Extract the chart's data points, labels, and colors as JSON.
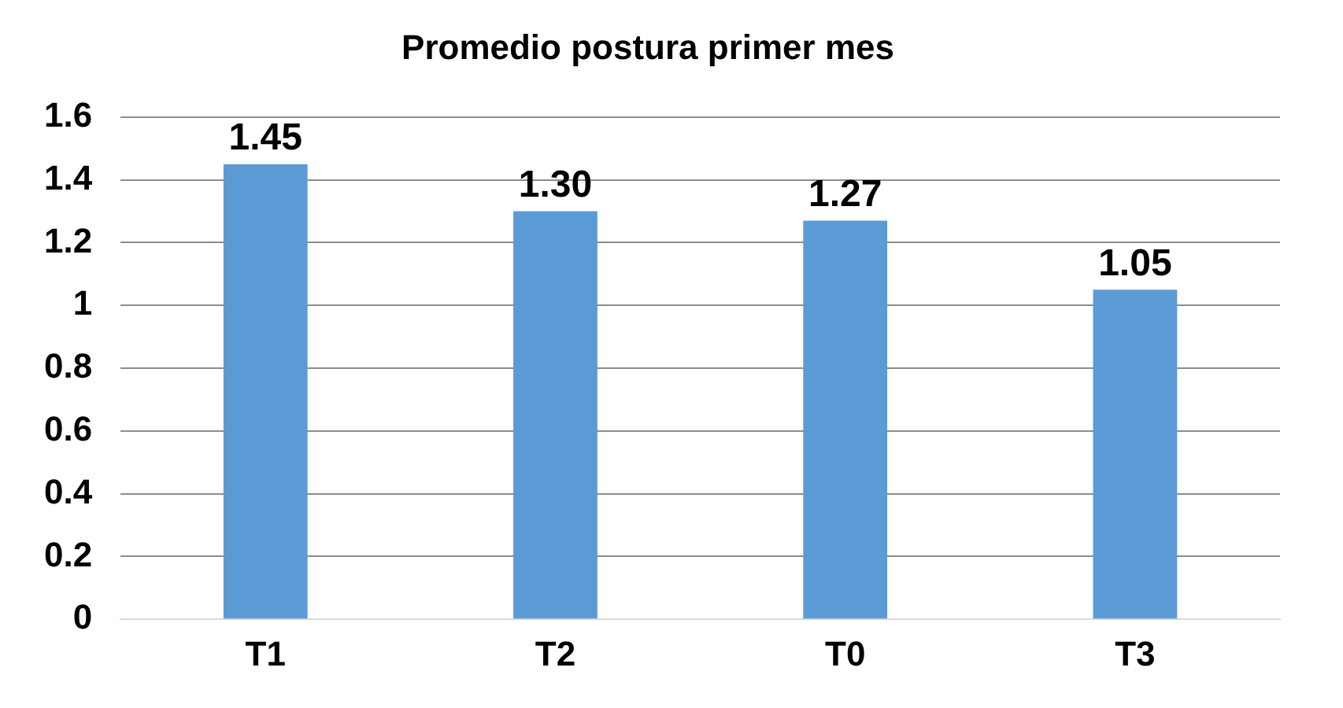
{
  "chart_data": {
    "type": "bar",
    "title": "Promedio postura primer mes",
    "categories": [
      "T1",
      "T2",
      "T0",
      "T3"
    ],
    "values": [
      1.45,
      1.3,
      1.27,
      1.05
    ],
    "value_labels": [
      "1.45",
      "1.30",
      "1.27",
      "1.05"
    ],
    "color": "#5b9bd5",
    "ylim": [
      0,
      1.6
    ],
    "yticks": [
      0,
      0.2,
      0.4,
      0.6,
      0.8,
      1,
      1.2,
      1.4,
      1.6
    ],
    "grid": "y",
    "legend": false
  }
}
